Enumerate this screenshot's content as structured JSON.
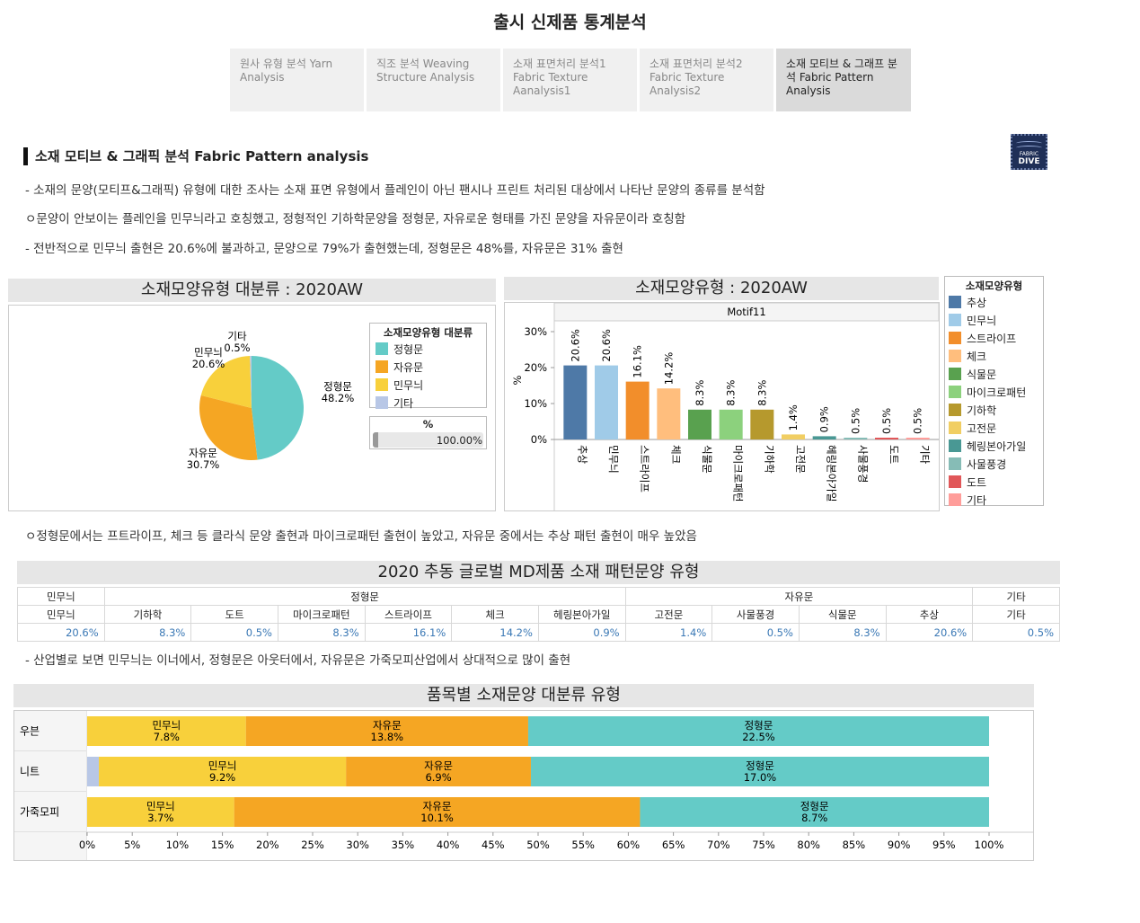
{
  "page": {
    "title": "출시 신제품 통계분석",
    "tabs": [
      {
        "label": "원사 유형 분석  Yarn Analysis",
        "active": false
      },
      {
        "label": "직조 분석 Weaving Structure Analysis",
        "active": false
      },
      {
        "label": "소재 표면처리 분석1 Fabric Texture Aanalysis1",
        "active": false
      },
      {
        "label": "소재 표면처리 분석2 Fabric Texture Analysis2",
        "active": false
      },
      {
        "label": "소재 모티브 & 그래프 분석 Fabric Pattern Analysis",
        "active": true
      }
    ],
    "logo": {
      "line1": "FABRIC",
      "line2": "DIVE"
    },
    "section_heading": "소재 모티브 & 그래픽 분석 Fabric Pattern analysis",
    "desc1": "- 소재의 문양(모티프&그래픽) 유형에 대한 조사는 소재 표면 유형에서 플레인이 아닌 팬시나 프린트 처리된 대상에서 나타난 문양의 종류를 분석함",
    "desc2": "ㅇ문양이 안보이는 플레인을 민무늬라고 호칭했고, 정형적인 기하학문양을 정형문, 자유로운 형태를 가진 문양을 자유문이라 호칭함",
    "desc3": "- 전반적으로 민무늬 출현은 20.6%에 불과하고, 문양으로 79%가 출현했는데, 정형문은 48%를, 자유문은 31% 출현",
    "note1": "ㅇ정형문에서는 프트라이프, 체크 등 클라식 문양 출현과 마이크로패턴 출현이 높았고, 자유문 중에서는 추상 패턴 출현이 매우 높았음",
    "note2": "- 산업별로 보면 민무늬는 이너에서, 정형문은 아웃터에서, 자유문은 가죽모피산업에서 상대적으로 많이 출현"
  },
  "pie": {
    "panel_title": "소재모양유형 대분류 : 2020AW",
    "legend_title": "소재모양유형 대분류",
    "pct_title": "%",
    "pct_value": "100.00%"
  },
  "bar": {
    "panel_title": "소재모양유형 : 2020AW",
    "header": "Motif11",
    "ylabel": "%",
    "legend_title": "소재모양유형"
  },
  "table": {
    "title": "2020 추동 글로벌 MD제품 소재 패턴문양 유형",
    "groups": [
      {
        "label": "민무늬",
        "span": 1
      },
      {
        "label": "정형문",
        "span": 6
      },
      {
        "label": "자유문",
        "span": 4
      },
      {
        "label": "기타",
        "span": 1
      }
    ],
    "columns": [
      "민무늬",
      "기하학",
      "도트",
      "마이크로패턴",
      "스트라이프",
      "체크",
      "헤링본아가일",
      "고전문",
      "사물풍경",
      "식물문",
      "추상",
      "기타"
    ],
    "values": [
      "20.6%",
      "8.3%",
      "0.5%",
      "8.3%",
      "16.1%",
      "14.2%",
      "0.9%",
      "1.4%",
      "0.5%",
      "8.3%",
      "20.6%",
      "0.5%"
    ]
  },
  "stack": {
    "panel_title": "품목별 소재문양 대분류 유형"
  },
  "chart_data": [
    {
      "type": "pie",
      "title": "소재모양유형 대분류 : 2020AW",
      "legend": [
        "정형문",
        "자유문",
        "민무늬",
        "기타"
      ],
      "slices": [
        {
          "label": "정형문",
          "value": 48.2,
          "text": "48.2%",
          "color": "#64cbc7"
        },
        {
          "label": "자유문",
          "value": 30.7,
          "text": "30.7%",
          "color": "#f5a623"
        },
        {
          "label": "민무늬",
          "value": 20.6,
          "text": "20.6%",
          "color": "#f8d03b"
        },
        {
          "label": "기타",
          "value": 0.5,
          "text": "0.5%",
          "color": "#b8c7e6"
        }
      ]
    },
    {
      "type": "bar",
      "title": "소재모양유형 : 2020AW",
      "xlabel": "Motif11",
      "ylabel": "%",
      "ylim": [
        0,
        33
      ],
      "yticks": [
        0,
        10,
        20,
        30
      ],
      "categories": [
        "추상",
        "민무늬",
        "스트라이프",
        "체크",
        "식물문",
        "마이크로패턴",
        "기하학",
        "고전문",
        "헤링본아가일",
        "사물풍경",
        "도트",
        "기타"
      ],
      "values": [
        20.6,
        20.6,
        16.1,
        14.2,
        8.3,
        8.3,
        8.3,
        1.4,
        0.9,
        0.5,
        0.5,
        0.5
      ],
      "colors": [
        "#4e79a7",
        "#a0cbe8",
        "#f28e2b",
        "#ffbe7d",
        "#59a14f",
        "#8cd17d",
        "#b6992d",
        "#f1ce63",
        "#499894",
        "#86bcb6",
        "#e15759",
        "#ff9d9a"
      ]
    },
    {
      "type": "bar",
      "orientation": "horizontal-stacked-100",
      "title": "품목별 소재문양 대분류 유형",
      "categories": [
        "우븐",
        "니트",
        "가죽모피"
      ],
      "xticks": [
        "0%",
        "5%",
        "10%",
        "15%",
        "20%",
        "25%",
        "30%",
        "35%",
        "40%",
        "45%",
        "50%",
        "55%",
        "60%",
        "65%",
        "70%",
        "75%",
        "80%",
        "85%",
        "90%",
        "95%",
        "100%"
      ],
      "series": [
        {
          "name": "기타",
          "color": "#b8c7e6",
          "values": [
            0,
            1.3,
            0
          ]
        },
        {
          "name": "민무늬",
          "color": "#f8d03b",
          "values": [
            17.6,
            27.4,
            16.3
          ],
          "labels": [
            "7.8%",
            "9.2%",
            "3.7%"
          ]
        },
        {
          "name": "자유문",
          "color": "#f5a623",
          "values": [
            31.3,
            20.5,
            45.0
          ],
          "labels": [
            "13.8%",
            "6.9%",
            "10.1%"
          ]
        },
        {
          "name": "정형문",
          "color": "#64cbc7",
          "values": [
            51.1,
            50.8,
            38.7
          ],
          "labels": [
            "22.5%",
            "17.0%",
            "8.7%"
          ]
        }
      ]
    }
  ]
}
